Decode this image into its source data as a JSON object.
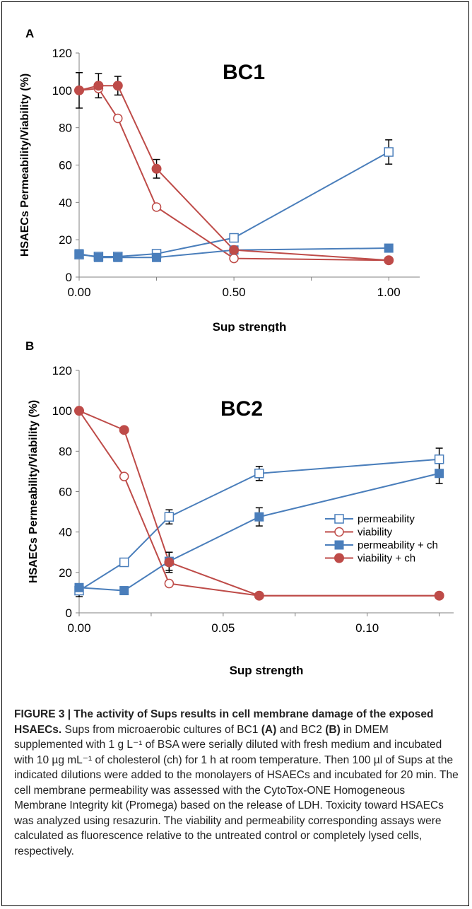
{
  "chart_data": [
    {
      "panel": "A",
      "type": "line",
      "title": "BC1",
      "xlabel": "Sup strength",
      "ylabel": "HSAECs Permeability/Viability (%)",
      "xlim": [
        0,
        1.1
      ],
      "ylim": [
        0,
        120
      ],
      "xticks": [
        "0.00",
        "0.50",
        "1.00"
      ],
      "yticks": [
        "0",
        "20",
        "40",
        "60",
        "80",
        "100",
        "120"
      ],
      "series": [
        {
          "name": "permeability",
          "color": "#4a7ebb",
          "marker": "square-open",
          "x": [
            0,
            0.0625,
            0.125,
            0.25,
            0.5,
            1.0
          ],
          "y": [
            12,
            11,
            11,
            12.5,
            21,
            67
          ],
          "err": [
            0,
            0,
            0,
            0,
            0,
            6.5
          ]
        },
        {
          "name": "viability",
          "color": "#be4b48",
          "marker": "circle-open",
          "x": [
            0,
            0.0625,
            0.125,
            0.25,
            0.5,
            1.0
          ],
          "y": [
            100,
            101,
            85,
            37.5,
            10,
            9
          ],
          "err": [
            0,
            0,
            0,
            0,
            0,
            0
          ]
        },
        {
          "name": "permeability + ch",
          "color": "#4a7ebb",
          "marker": "square-filled",
          "x": [
            0,
            0.0625,
            0.125,
            0.25,
            0.5,
            1.0
          ],
          "y": [
            12.5,
            10.5,
            10.5,
            10.5,
            14.5,
            15.5
          ],
          "err": [
            0,
            0,
            0,
            0,
            0,
            0
          ]
        },
        {
          "name": "viability + ch",
          "color": "#be4b48",
          "marker": "circle-filled",
          "x": [
            0,
            0.0625,
            0.125,
            0.25,
            0.5,
            1.0
          ],
          "y": [
            100,
            102.5,
            102.5,
            58,
            14.5,
            9
          ],
          "err": [
            9.5,
            6.5,
            5,
            5,
            0,
            0
          ]
        }
      ]
    },
    {
      "panel": "B",
      "type": "line",
      "title": "BC2",
      "xlabel": "Sup strength",
      "ylabel": "HSAECs Permeability/Viability (%)",
      "xlim": [
        0,
        0.13
      ],
      "ylim": [
        0,
        120
      ],
      "xticks": [
        "0.00",
        "0.05",
        "0.10"
      ],
      "yticks": [
        "0",
        "20",
        "40",
        "60",
        "80",
        "100",
        "120"
      ],
      "legend": "center-right",
      "series": [
        {
          "name": "permeability",
          "color": "#4a7ebb",
          "marker": "square-open",
          "x": [
            0,
            0.015625,
            0.03125,
            0.0625,
            0.125
          ],
          "y": [
            11,
            25,
            47.5,
            69,
            76
          ],
          "err": [
            3,
            0,
            3.5,
            3.5,
            5.5
          ]
        },
        {
          "name": "viability",
          "color": "#be4b48",
          "marker": "circle-open",
          "x": [
            0,
            0.015625,
            0.03125,
            0.0625,
            0.125
          ],
          "y": [
            100,
            67.5,
            14.5,
            8.5,
            8.5
          ],
          "err": [
            0,
            0,
            0,
            0,
            0
          ]
        },
        {
          "name": "permeability + ch",
          "color": "#4a7ebb",
          "marker": "square-filled",
          "x": [
            0,
            0.015625,
            0.03125,
            0.0625,
            0.125
          ],
          "y": [
            12.5,
            11,
            25.5,
            47.5,
            69
          ],
          "err": [
            0,
            0,
            4.5,
            4.5,
            5
          ]
        },
        {
          "name": "viability + ch",
          "color": "#be4b48",
          "marker": "circle-filled",
          "x": [
            0,
            0.015625,
            0.03125,
            0.0625,
            0.125
          ],
          "y": [
            100,
            90.5,
            25,
            8.5,
            8.5
          ],
          "err": [
            0,
            0,
            5,
            0,
            0
          ]
        }
      ]
    }
  ],
  "caption": {
    "title": "FIGURE 3 | The activity of Sups results in cell membrane damage of the exposed HSAECs.",
    "body_1": " Sups from microaerobic cultures of BC1 ",
    "ref_a": "(A)",
    "body_2": " and BC2 ",
    "ref_b": "(B)",
    "body_3": " in DMEM supplemented with 1 g L⁻¹ of BSA were serially diluted with fresh medium and incubated with 10 µg mL⁻¹ of cholesterol (ch) for 1 h at room temperature. Then 100 µl of Sups at the indicated dilutions were added to the monolayers of HSAECs and incubated for 20 min. The cell membrane permeability was assessed with the CytoTox-ONE Homogeneous Membrane Integrity kit (Promega) based on the release of LDH. Toxicity toward HSAECs was analyzed using resazurin. The viability and permeability corresponding assays were calculated as fluorescence relative to the untreated control or completely lysed cells, respectively."
  }
}
